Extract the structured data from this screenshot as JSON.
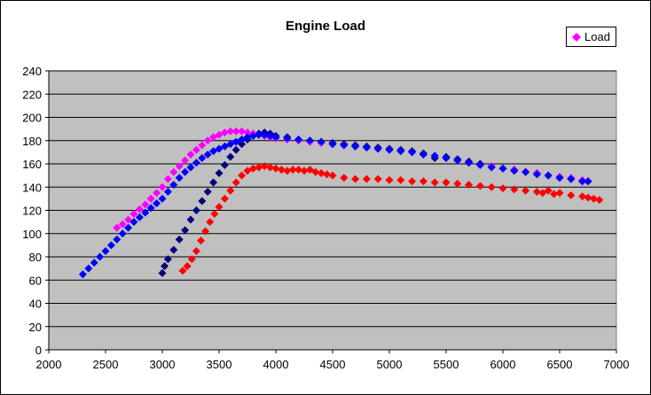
{
  "chart_data": {
    "type": "scatter",
    "title": "Engine Load",
    "xlabel": "",
    "ylabel": "",
    "xlim": [
      2000,
      7000
    ],
    "ylim": [
      0,
      240
    ],
    "x_ticks": [
      2000,
      2500,
      3000,
      3500,
      4000,
      4500,
      5000,
      5500,
      6000,
      6500,
      7000
    ],
    "y_ticks": [
      0,
      20,
      40,
      60,
      80,
      100,
      120,
      140,
      160,
      180,
      200,
      220,
      240
    ],
    "grid": "horizontal",
    "plot_background": "#c0c0c0",
    "legend_position": "top-right",
    "legend": [
      {
        "label": "Load",
        "color": "#ff00ff",
        "marker": "diamond"
      }
    ],
    "series": [
      {
        "name": "Load",
        "color": "#ff00ff",
        "points": [
          [
            2600,
            105
          ],
          [
            2650,
            108
          ],
          [
            2700,
            112
          ],
          [
            2750,
            117
          ],
          [
            2800,
            121
          ],
          [
            2850,
            125
          ],
          [
            2900,
            130
          ],
          [
            2950,
            135
          ],
          [
            3000,
            140
          ],
          [
            3050,
            147
          ],
          [
            3100,
            153
          ],
          [
            3150,
            158
          ],
          [
            3200,
            163
          ],
          [
            3250,
            168
          ],
          [
            3300,
            172
          ],
          [
            3350,
            176
          ],
          [
            3400,
            180
          ],
          [
            3450,
            183
          ],
          [
            3500,
            185
          ],
          [
            3550,
            187
          ],
          [
            3600,
            188
          ],
          [
            3650,
            188
          ],
          [
            3700,
            188
          ],
          [
            3750,
            187
          ],
          [
            3800,
            186
          ],
          [
            3850,
            185
          ],
          [
            3900,
            184
          ],
          [
            3950,
            183
          ],
          [
            4000,
            182
          ],
          [
            4100,
            181
          ],
          [
            4200,
            180
          ],
          [
            4300,
            179
          ],
          [
            4400,
            178
          ],
          [
            4500,
            177
          ],
          [
            4600,
            176
          ],
          [
            4700,
            175
          ],
          [
            4800,
            174
          ],
          [
            4900,
            173
          ],
          [
            5000,
            172
          ],
          [
            5100,
            171
          ],
          [
            5200,
            170
          ],
          [
            5300,
            168
          ],
          [
            5400,
            167
          ],
          [
            5500,
            165
          ],
          [
            5600,
            163
          ],
          [
            5700,
            161
          ],
          [
            5800,
            159
          ],
          [
            5900,
            158
          ],
          [
            6000,
            156
          ],
          [
            6100,
            155
          ],
          [
            6200,
            153
          ],
          [
            6300,
            152
          ],
          [
            6400,
            150
          ],
          [
            6500,
            149
          ],
          [
            6600,
            148
          ],
          [
            6700,
            146
          ],
          [
            6750,
            145
          ]
        ]
      },
      {
        "color": "#0000ff",
        "points": [
          [
            2300,
            65
          ],
          [
            2350,
            70
          ],
          [
            2400,
            75
          ],
          [
            2450,
            80
          ],
          [
            2500,
            85
          ],
          [
            2550,
            90
          ],
          [
            2600,
            95
          ],
          [
            2650,
            100
          ],
          [
            2700,
            105
          ],
          [
            2750,
            110
          ],
          [
            2800,
            114
          ],
          [
            2850,
            118
          ],
          [
            2900,
            122
          ],
          [
            2950,
            126
          ],
          [
            3000,
            130
          ],
          [
            3050,
            136
          ],
          [
            3100,
            142
          ],
          [
            3150,
            148
          ],
          [
            3200,
            153
          ],
          [
            3250,
            157
          ],
          [
            3300,
            161
          ],
          [
            3350,
            165
          ],
          [
            3400,
            168
          ],
          [
            3450,
            171
          ],
          [
            3500,
            173
          ],
          [
            3550,
            175
          ],
          [
            3600,
            177
          ],
          [
            3650,
            179
          ],
          [
            3700,
            181
          ],
          [
            3750,
            183
          ],
          [
            3800,
            184
          ],
          [
            3850,
            185
          ],
          [
            3900,
            185
          ],
          [
            3950,
            184
          ],
          [
            4000,
            183
          ],
          [
            4100,
            182
          ],
          [
            4200,
            181
          ],
          [
            4300,
            180
          ],
          [
            4400,
            179
          ],
          [
            4500,
            177
          ],
          [
            4600,
            176
          ],
          [
            4700,
            175
          ],
          [
            4800,
            174
          ],
          [
            4900,
            173
          ],
          [
            5000,
            172
          ],
          [
            5100,
            171
          ],
          [
            5200,
            170
          ],
          [
            5300,
            168
          ],
          [
            5400,
            167
          ],
          [
            5500,
            165
          ],
          [
            5600,
            163
          ],
          [
            5700,
            161
          ],
          [
            5800,
            159
          ],
          [
            5900,
            157
          ],
          [
            6000,
            156
          ],
          [
            6100,
            154
          ],
          [
            6200,
            153
          ],
          [
            6300,
            151
          ],
          [
            6400,
            150
          ],
          [
            6500,
            148
          ],
          [
            6600,
            147
          ],
          [
            6700,
            145
          ],
          [
            6750,
            145
          ]
        ]
      },
      {
        "color": "#000080",
        "points": [
          [
            3000,
            66
          ],
          [
            3020,
            72
          ],
          [
            3050,
            78
          ],
          [
            3100,
            86
          ],
          [
            3150,
            95
          ],
          [
            3200,
            103
          ],
          [
            3250,
            112
          ],
          [
            3300,
            120
          ],
          [
            3350,
            128
          ],
          [
            3400,
            136
          ],
          [
            3450,
            144
          ],
          [
            3500,
            152
          ],
          [
            3550,
            159
          ],
          [
            3600,
            166
          ],
          [
            3650,
            172
          ],
          [
            3700,
            177
          ],
          [
            3750,
            181
          ],
          [
            3800,
            184
          ],
          [
            3850,
            186
          ],
          [
            3900,
            187
          ],
          [
            3950,
            186
          ],
          [
            4000,
            184
          ],
          [
            4100,
            183
          ],
          [
            4200,
            181
          ],
          [
            4300,
            180
          ],
          [
            4400,
            179
          ],
          [
            4500,
            178
          ],
          [
            4600,
            177
          ],
          [
            4700,
            176
          ],
          [
            4800,
            175
          ],
          [
            4900,
            174
          ],
          [
            5000,
            173
          ],
          [
            5100,
            172
          ],
          [
            5200,
            171
          ],
          [
            5300,
            169
          ],
          [
            5400,
            165
          ],
          [
            5500,
            166
          ],
          [
            5600,
            164
          ],
          [
            5700,
            162
          ],
          [
            5800,
            160
          ],
          [
            5900,
            158
          ],
          [
            6000,
            156
          ],
          [
            6100,
            155
          ],
          [
            6200,
            153
          ],
          [
            6300,
            152
          ],
          [
            6400,
            150
          ],
          [
            6500,
            148
          ],
          [
            6600,
            147
          ],
          [
            6700,
            145
          ],
          [
            6750,
            145
          ]
        ]
      },
      {
        "color": "#ff0000",
        "points": [
          [
            3180,
            68
          ],
          [
            3220,
            72
          ],
          [
            3260,
            78
          ],
          [
            3300,
            85
          ],
          [
            3340,
            94
          ],
          [
            3380,
            102
          ],
          [
            3420,
            110
          ],
          [
            3460,
            117
          ],
          [
            3500,
            123
          ],
          [
            3550,
            130
          ],
          [
            3600,
            137
          ],
          [
            3650,
            144
          ],
          [
            3700,
            150
          ],
          [
            3750,
            154
          ],
          [
            3800,
            156
          ],
          [
            3850,
            157
          ],
          [
            3900,
            158
          ],
          [
            3950,
            157
          ],
          [
            4000,
            156
          ],
          [
            4050,
            155
          ],
          [
            4100,
            154
          ],
          [
            4150,
            155
          ],
          [
            4200,
            155
          ],
          [
            4250,
            154
          ],
          [
            4300,
            155
          ],
          [
            4350,
            153
          ],
          [
            4400,
            152
          ],
          [
            4450,
            151
          ],
          [
            4500,
            150
          ],
          [
            4600,
            148
          ],
          [
            4700,
            147
          ],
          [
            4800,
            147
          ],
          [
            4900,
            147
          ],
          [
            5000,
            146
          ],
          [
            5100,
            146
          ],
          [
            5200,
            145
          ],
          [
            5300,
            145
          ],
          [
            5400,
            144
          ],
          [
            5500,
            144
          ],
          [
            5600,
            143
          ],
          [
            5700,
            142
          ],
          [
            5800,
            141
          ],
          [
            5900,
            140
          ],
          [
            6000,
            139
          ],
          [
            6100,
            138
          ],
          [
            6200,
            137
          ],
          [
            6300,
            136
          ],
          [
            6350,
            135
          ],
          [
            6400,
            137
          ],
          [
            6450,
            134
          ],
          [
            6500,
            135
          ],
          [
            6600,
            133
          ],
          [
            6700,
            132
          ],
          [
            6750,
            131
          ],
          [
            6800,
            130
          ],
          [
            6850,
            129
          ]
        ]
      }
    ]
  }
}
